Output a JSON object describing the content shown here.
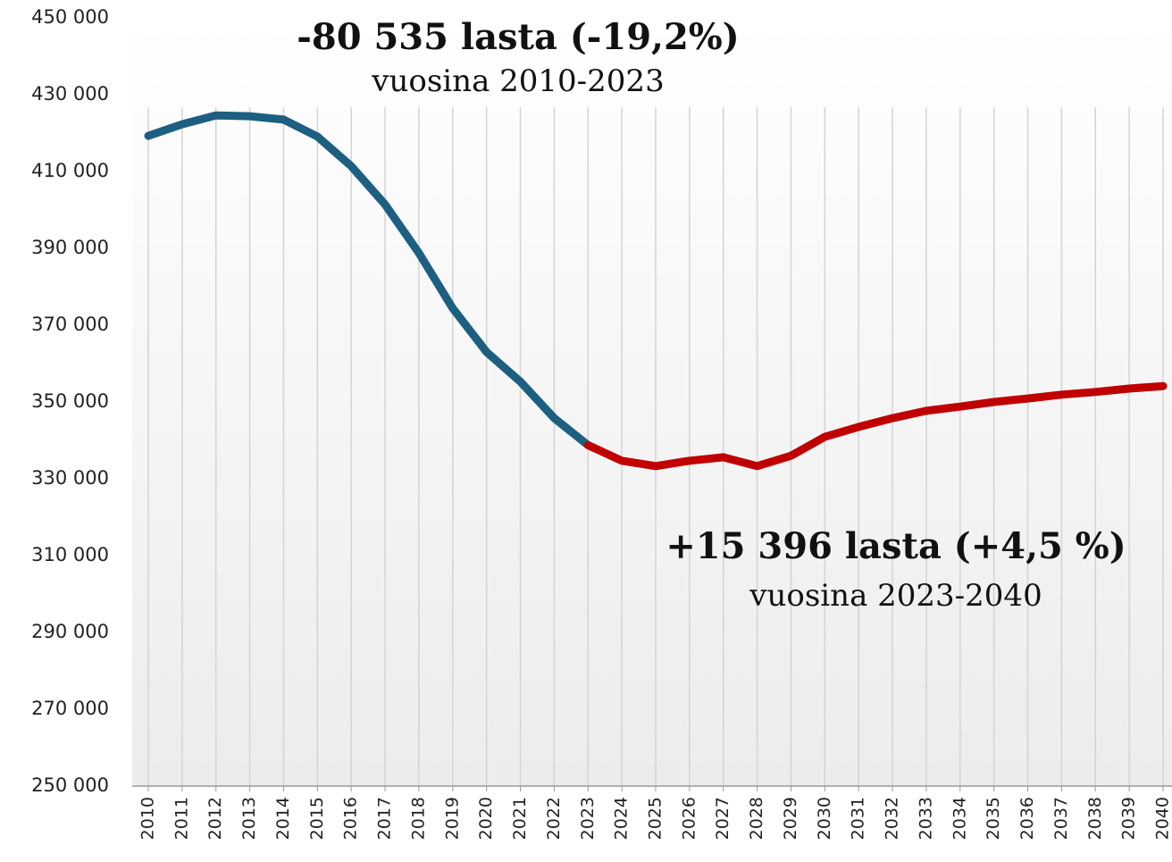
{
  "chart_data": {
    "type": "line",
    "categories": [
      "2010",
      "2011",
      "2012",
      "2013",
      "2014",
      "2015",
      "2016",
      "2017",
      "2018",
      "2019",
      "2020",
      "2021",
      "2022",
      "2023",
      "2024",
      "2025",
      "2026",
      "2027",
      "2028",
      "2029",
      "2030",
      "2031",
      "2032",
      "2033",
      "2034",
      "2035",
      "2036",
      "2037",
      "2038",
      "2039",
      "2040"
    ],
    "series": [
      {
        "color": "#1c5f80",
        "values": [
          419270,
          422300,
          424600,
          424400,
          423500,
          419100,
          411400,
          401400,
          388800,
          374400,
          363000,
          355300,
          345800,
          338735,
          null,
          null,
          null,
          null,
          null,
          null,
          null,
          null,
          null,
          null,
          null,
          null,
          null,
          null,
          null,
          null,
          null
        ]
      },
      {
        "color": "#c00000",
        "values": [
          null,
          null,
          null,
          null,
          null,
          null,
          null,
          null,
          null,
          null,
          null,
          null,
          null,
          338735,
          334700,
          333300,
          334700,
          335600,
          333300,
          336000,
          340900,
          343500,
          345800,
          347700,
          348800,
          350000,
          350900,
          351900,
          352600,
          353500,
          354131
        ]
      }
    ],
    "ylim": [
      250000,
      450000
    ],
    "yticks": [
      {
        "value": 250000,
        "label": "250 000"
      },
      {
        "value": 270000,
        "label": "270 000"
      },
      {
        "value": 290000,
        "label": "290 000"
      },
      {
        "value": 310000,
        "label": "310 000"
      },
      {
        "value": 330000,
        "label": "330 000"
      },
      {
        "value": 350000,
        "label": "350 000"
      },
      {
        "value": 370000,
        "label": "370 000"
      },
      {
        "value": 390000,
        "label": "390 000"
      },
      {
        "value": 410000,
        "label": "410 000"
      },
      {
        "value": 430000,
        "label": "430 000"
      },
      {
        "value": 450000,
        "label": "450 000"
      }
    ],
    "grid": true,
    "annotations": [
      {
        "title": "-80 535 lasta (-19,2%)",
        "subtitle": "vuosina 2010-2023"
      },
      {
        "title": "+15 396 lasta (+4,5 %)",
        "subtitle": "vuosina 2023-2040"
      }
    ]
  }
}
